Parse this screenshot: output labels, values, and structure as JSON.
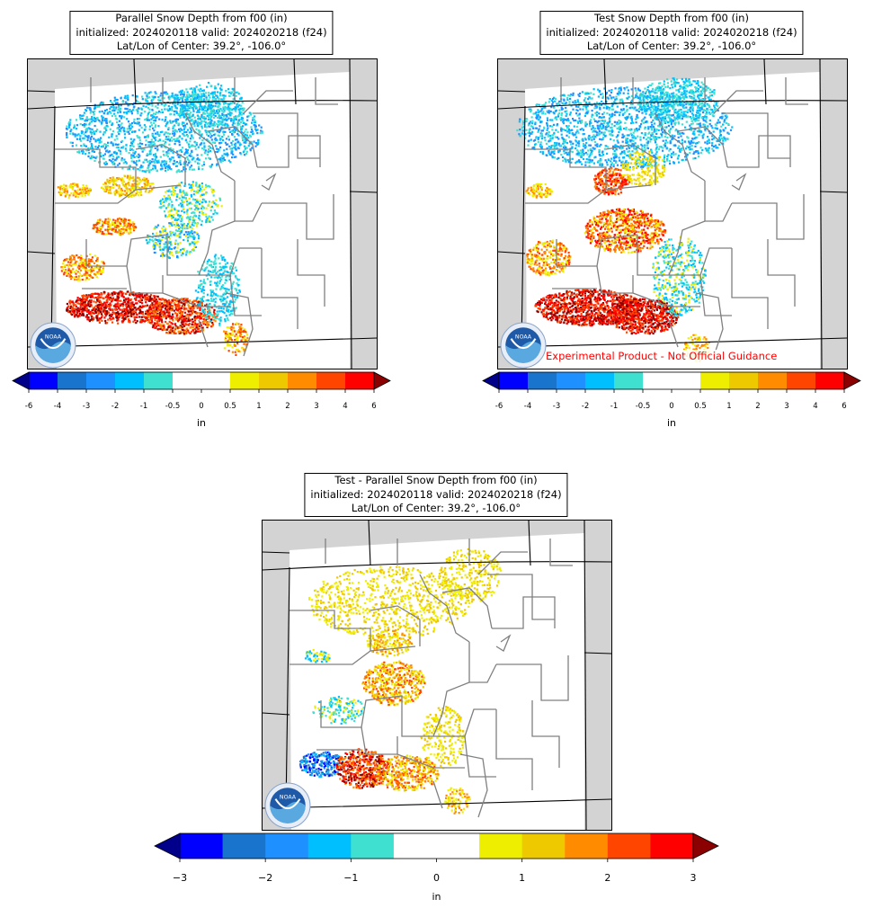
{
  "panels": [
    {
      "title_lines": [
        "Parallel Snow Depth from f00 (in)",
        "initialized: 2024020118 valid: 2024020218 (f24)",
        "Lat/Lon of Center: 39.2°, -106.0°"
      ],
      "field": "parallel"
    },
    {
      "title_lines": [
        "Test Snow Depth from f00 (in)",
        "initialized: 2024020118 valid: 2024020218 (f24)",
        "Lat/Lon of Center: 39.2°, -106.0°"
      ],
      "field": "test",
      "watermark": "Experimental Product - Not Official Guidance"
    },
    {
      "title_lines": [
        "Test - Parallel Snow Depth from f00 (in)",
        "initialized: 2024020118 valid: 2024020218 (f24)",
        "Lat/Lon of Center: 39.2°, -106.0°"
      ],
      "field": "difference"
    }
  ],
  "logo_text": "NOAA",
  "colorbar_small": {
    "unit": "in",
    "ticks": [
      "-6",
      "-4",
      "-3",
      "-2",
      "-1",
      "-0.5",
      "0",
      "0.5",
      "1",
      "2",
      "3",
      "4",
      "6"
    ],
    "colors": [
      "#0000ff",
      "#1874cd",
      "#1e90ff",
      "#00bfff",
      "#40e0d0",
      "#ffffff",
      "#ffffff",
      "#eeee00",
      "#eec900",
      "#ff8c00",
      "#ff4500",
      "#ff0000"
    ],
    "under_color": "#00008b",
    "over_color": "#8b0000"
  },
  "colorbar_large": {
    "unit": "in",
    "ticks": [
      "−3",
      "−2",
      "−1",
      "0",
      "1",
      "2",
      "3"
    ],
    "colors": [
      "#0000ff",
      "#1874cd",
      "#1e90ff",
      "#00bfff",
      "#40e0d0",
      "#ffffff",
      "#ffffff",
      "#eeee00",
      "#eec900",
      "#ff8c00",
      "#ff4500",
      "#ff0000"
    ],
    "under_color": "#00008b",
    "over_color": "#8b0000"
  }
}
